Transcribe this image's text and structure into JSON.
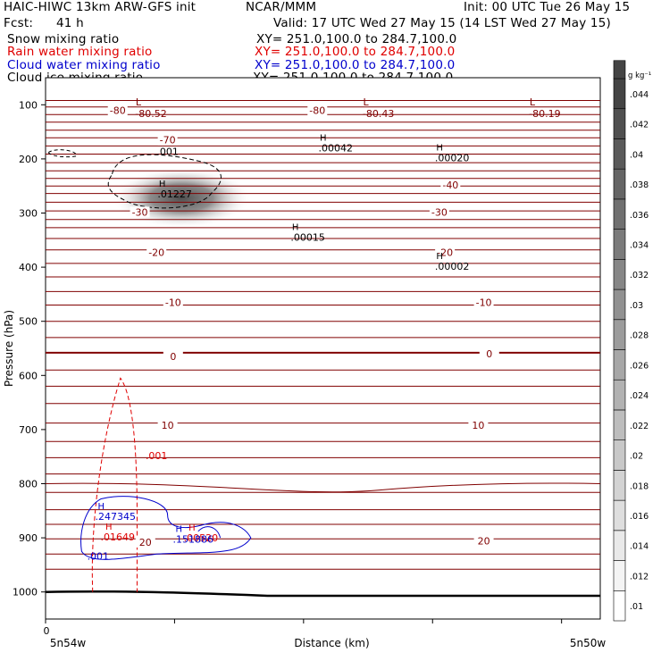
{
  "header": {
    "title_left": "HAIC-HIWC 13km ARW-GFS init",
    "center_label": "NCAR/MMM",
    "init_line": "Init: 00 UTC Tue 26 May 15",
    "fcst_label": "Fcst:",
    "fcst_value": "41 h",
    "valid_line": "Valid: 17 UTC Wed 27 May 15 (14 LST Wed 27 May 15)",
    "fields": [
      {
        "name": "Snow mixing ratio",
        "xy": "XY= 251.0,100.0 to 284.7,100.0",
        "color": "#000000"
      },
      {
        "name": "Rain water mixing ratio",
        "xy": "XY= 251.0,100.0 to 284.7,100.0",
        "color": "#e00000"
      },
      {
        "name": "Cloud water mixing ratio",
        "xy": "XY= 251.0,100.0 to 284.7,100.0",
        "color": "#0000cc"
      },
      {
        "name": "Cloud ice mixing ratio",
        "xy": "XY= 251.0,100.0 to 284.7,100.0",
        "color": "#000000"
      }
    ]
  },
  "chart_data": {
    "type": "cross-section",
    "ylabel": "Pressure (hPa)",
    "xlabel": "Distance (km)",
    "x_tick_label": "0",
    "x_left_label": "5n54w",
    "x_right_label": "5n50w",
    "y_ticks": [
      100,
      200,
      300,
      400,
      500,
      600,
      700,
      800,
      900,
      1000
    ],
    "ylim": [
      1050,
      50
    ],
    "colorbar": {
      "units": "g kg⁻¹",
      "levels": [
        ".01",
        ".012",
        ".014",
        ".016",
        ".018",
        ".02",
        ".022",
        ".024",
        ".026",
        ".028",
        ".03",
        ".032",
        ".034",
        ".036",
        ".038",
        ".04",
        ".042",
        ".044"
      ],
      "color_low": "#ffffff",
      "color_high": "#444444"
    },
    "temperature_contours": {
      "color": "#800000",
      "labels": [
        {
          "text": "-80",
          "x": 0.13,
          "p": 110
        },
        {
          "text": "-80",
          "x": 0.49,
          "p": 110
        },
        {
          "text": "-70",
          "x": 0.22,
          "p": 165
        },
        {
          "text": "-40",
          "x": 0.73,
          "p": 248
        },
        {
          "text": "-30",
          "x": 0.17,
          "p": 298
        },
        {
          "text": "-30",
          "x": 0.71,
          "p": 298
        },
        {
          "text": "-20",
          "x": 0.2,
          "p": 373
        },
        {
          "text": "-20",
          "x": 0.72,
          "p": 373
        },
        {
          "text": "-10",
          "x": 0.23,
          "p": 465
        },
        {
          "text": "-10",
          "x": 0.79,
          "p": 465
        },
        {
          "text": "0",
          "x": 0.23,
          "p": 565
        },
        {
          "text": "0",
          "x": 0.8,
          "p": 560
        },
        {
          "text": "10",
          "x": 0.22,
          "p": 692
        },
        {
          "text": "10",
          "x": 0.78,
          "p": 692
        },
        {
          "text": "20",
          "x": 0.18,
          "p": 908
        },
        {
          "text": "20",
          "x": 0.79,
          "p": 906
        }
      ],
      "minima": [
        {
          "letter": "L",
          "value": "-80.52",
          "x": 0.19,
          "p": 98
        },
        {
          "letter": "L",
          "value": "-80.43",
          "x": 0.6,
          "p": 98
        },
        {
          "letter": "L",
          "value": "-80.19",
          "x": 0.9,
          "p": 98
        }
      ]
    },
    "snow_contour_label": ".001",
    "snow_maxima": [
      {
        "letter": "H",
        "value": ".01227",
        "x": 0.22,
        "p": 255
      },
      {
        "letter": "H",
        "value": ".00042",
        "x": 0.51,
        "p": 170
      },
      {
        "letter": "H",
        "value": ".00020",
        "x": 0.72,
        "p": 188
      },
      {
        "letter": "H",
        "value": ".00015",
        "x": 0.46,
        "p": 335
      },
      {
        "letter": "H",
        "value": ".00002",
        "x": 0.72,
        "p": 388
      }
    ],
    "rain_contour_label": ".001",
    "rain_maxima": [
      {
        "letter": "H",
        "value": ".01649",
        "x": 0.13,
        "p": 898
      },
      {
        "letter": "H",
        "value": ".00520",
        "x": 0.28,
        "p": 900
      }
    ],
    "cloud_contour_label": ".001",
    "cloud_maxima": [
      {
        "letter": "H",
        "value": ".247345",
        "x": 0.11,
        "p": 860
      },
      {
        "letter": "H",
        "value": ".151886",
        "x": 0.25,
        "p": 902
      }
    ]
  }
}
